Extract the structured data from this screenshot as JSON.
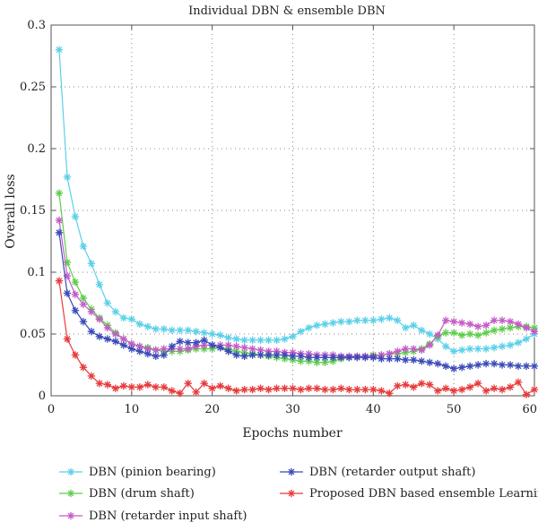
{
  "chart_data": {
    "type": "line",
    "title": "Individual DBN & ensemble DBN",
    "xlabel": "Epochs number",
    "ylabel": "Overall loss",
    "xlim": [
      0,
      60
    ],
    "ylim": [
      0,
      0.3
    ],
    "xticks": [
      0,
      10,
      20,
      30,
      40,
      50,
      60
    ],
    "yticks": [
      0,
      0.05,
      0.1,
      0.15,
      0.2,
      0.25,
      0.3
    ],
    "xtick_labels": [
      "0",
      "10",
      "20",
      "30",
      "40",
      "50",
      "60"
    ],
    "ytick_labels": [
      "0",
      "0.05",
      "0.1",
      "0.15",
      "0.2",
      "0.25",
      "0.3"
    ],
    "grid": "dotted",
    "legend_position": "bottom",
    "series": [
      {
        "name": "DBN (pinion bearing)",
        "color": "#5bd0e8",
        "x": [
          1,
          2,
          3,
          4,
          5,
          6,
          7,
          8,
          9,
          10,
          11,
          12,
          13,
          14,
          15,
          16,
          17,
          18,
          19,
          20,
          21,
          22,
          23,
          24,
          25,
          26,
          27,
          28,
          29,
          30,
          31,
          32,
          33,
          34,
          35,
          36,
          37,
          38,
          39,
          40,
          41,
          42,
          43,
          44,
          45,
          46,
          47,
          48,
          49,
          50,
          51,
          52,
          53,
          54,
          55,
          56,
          57,
          58,
          59,
          60
        ],
        "values": [
          0.28,
          0.177,
          0.145,
          0.121,
          0.107,
          0.09,
          0.075,
          0.068,
          0.063,
          0.062,
          0.058,
          0.056,
          0.054,
          0.054,
          0.053,
          0.053,
          0.053,
          0.052,
          0.051,
          0.05,
          0.049,
          0.047,
          0.046,
          0.045,
          0.045,
          0.045,
          0.045,
          0.045,
          0.046,
          0.048,
          0.052,
          0.055,
          0.057,
          0.058,
          0.059,
          0.06,
          0.06,
          0.061,
          0.061,
          0.061,
          0.062,
          0.063,
          0.061,
          0.055,
          0.057,
          0.053,
          0.05,
          0.046,
          0.04,
          0.036,
          0.037,
          0.038,
          0.038,
          0.038,
          0.039,
          0.04,
          0.041,
          0.043,
          0.046,
          0.05
        ]
      },
      {
        "name": "DBN (drum shaft)",
        "color": "#5ccf4a",
        "x": [
          1,
          2,
          3,
          4,
          5,
          6,
          7,
          8,
          9,
          10,
          11,
          12,
          13,
          14,
          15,
          16,
          17,
          18,
          19,
          20,
          21,
          22,
          23,
          24,
          25,
          26,
          27,
          28,
          29,
          30,
          31,
          32,
          33,
          34,
          35,
          36,
          37,
          38,
          39,
          40,
          41,
          42,
          43,
          44,
          45,
          46,
          47,
          48,
          49,
          50,
          51,
          52,
          53,
          54,
          55,
          56,
          57,
          58,
          59,
          60
        ],
        "values": [
          0.164,
          0.108,
          0.092,
          0.079,
          0.07,
          0.063,
          0.057,
          0.051,
          0.046,
          0.042,
          0.04,
          0.039,
          0.037,
          0.036,
          0.036,
          0.036,
          0.037,
          0.038,
          0.038,
          0.038,
          0.039,
          0.038,
          0.036,
          0.035,
          0.034,
          0.033,
          0.032,
          0.031,
          0.03,
          0.029,
          0.028,
          0.028,
          0.027,
          0.027,
          0.028,
          0.03,
          0.031,
          0.032,
          0.032,
          0.033,
          0.033,
          0.034,
          0.034,
          0.035,
          0.036,
          0.038,
          0.042,
          0.048,
          0.051,
          0.051,
          0.049,
          0.05,
          0.049,
          0.051,
          0.053,
          0.054,
          0.055,
          0.056,
          0.056,
          0.055
        ]
      },
      {
        "name": "DBN (retarder input shaft)",
        "color": "#c45bc7",
        "x": [
          1,
          2,
          3,
          4,
          5,
          6,
          7,
          8,
          9,
          10,
          11,
          12,
          13,
          14,
          15,
          16,
          17,
          18,
          19,
          20,
          21,
          22,
          23,
          24,
          25,
          26,
          27,
          28,
          29,
          30,
          31,
          32,
          33,
          34,
          35,
          36,
          37,
          38,
          39,
          40,
          41,
          42,
          43,
          44,
          45,
          46,
          47,
          48,
          49,
          50,
          51,
          52,
          53,
          54,
          55,
          56,
          57,
          58,
          59,
          60
        ],
        "values": [
          0.142,
          0.097,
          0.082,
          0.074,
          0.068,
          0.062,
          0.055,
          0.05,
          0.046,
          0.042,
          0.04,
          0.038,
          0.037,
          0.038,
          0.038,
          0.038,
          0.038,
          0.04,
          0.041,
          0.041,
          0.041,
          0.041,
          0.04,
          0.039,
          0.038,
          0.037,
          0.036,
          0.036,
          0.035,
          0.035,
          0.034,
          0.034,
          0.033,
          0.033,
          0.033,
          0.032,
          0.032,
          0.032,
          0.032,
          0.032,
          0.033,
          0.034,
          0.036,
          0.038,
          0.038,
          0.037,
          0.041,
          0.049,
          0.061,
          0.06,
          0.059,
          0.058,
          0.056,
          0.057,
          0.061,
          0.061,
          0.06,
          0.058,
          0.055,
          0.052
        ]
      },
      {
        "name": "DBN (retarder output shaft)",
        "color": "#3a4ab8",
        "x": [
          1,
          2,
          3,
          4,
          5,
          6,
          7,
          8,
          9,
          10,
          11,
          12,
          13,
          14,
          15,
          16,
          17,
          18,
          19,
          20,
          21,
          22,
          23,
          24,
          25,
          26,
          27,
          28,
          29,
          30,
          31,
          32,
          33,
          34,
          35,
          36,
          37,
          38,
          39,
          40,
          41,
          42,
          43,
          44,
          45,
          46,
          47,
          48,
          49,
          50,
          51,
          52,
          53,
          54,
          55,
          56,
          57,
          58,
          59,
          60
        ],
        "values": [
          0.132,
          0.083,
          0.069,
          0.06,
          0.052,
          0.048,
          0.046,
          0.044,
          0.041,
          0.038,
          0.036,
          0.034,
          0.032,
          0.033,
          0.04,
          0.044,
          0.043,
          0.043,
          0.045,
          0.041,
          0.039,
          0.036,
          0.033,
          0.032,
          0.033,
          0.033,
          0.033,
          0.033,
          0.033,
          0.032,
          0.032,
          0.031,
          0.031,
          0.031,
          0.031,
          0.031,
          0.031,
          0.031,
          0.031,
          0.031,
          0.03,
          0.03,
          0.03,
          0.029,
          0.029,
          0.028,
          0.027,
          0.026,
          0.024,
          0.022,
          0.023,
          0.024,
          0.025,
          0.026,
          0.026,
          0.025,
          0.025,
          0.024,
          0.024,
          0.024
        ]
      },
      {
        "name": "Proposed DBN based ensemble Learning",
        "color": "#e83a3a",
        "x": [
          1,
          2,
          3,
          4,
          5,
          6,
          7,
          8,
          9,
          10,
          11,
          12,
          13,
          14,
          15,
          16,
          17,
          18,
          19,
          20,
          21,
          22,
          23,
          24,
          25,
          26,
          27,
          28,
          29,
          30,
          31,
          32,
          33,
          34,
          35,
          36,
          37,
          38,
          39,
          40,
          41,
          42,
          43,
          44,
          45,
          46,
          47,
          48,
          49,
          50,
          51,
          52,
          53,
          54,
          55,
          56,
          57,
          58,
          59,
          60
        ],
        "values": [
          0.093,
          0.046,
          0.033,
          0.023,
          0.016,
          0.01,
          0.009,
          0.006,
          0.008,
          0.007,
          0.007,
          0.009,
          0.007,
          0.007,
          0.004,
          0.002,
          0.01,
          0.003,
          0.01,
          0.006,
          0.008,
          0.006,
          0.004,
          0.005,
          0.005,
          0.006,
          0.005,
          0.006,
          0.006,
          0.006,
          0.005,
          0.006,
          0.006,
          0.005,
          0.005,
          0.006,
          0.005,
          0.005,
          0.005,
          0.005,
          0.004,
          0.002,
          0.008,
          0.009,
          0.007,
          0.01,
          0.009,
          0.004,
          0.006,
          0.004,
          0.005,
          0.007,
          0.01,
          0.004,
          0.006,
          0.005,
          0.007,
          0.011,
          0.001,
          0.005
        ]
      }
    ]
  }
}
